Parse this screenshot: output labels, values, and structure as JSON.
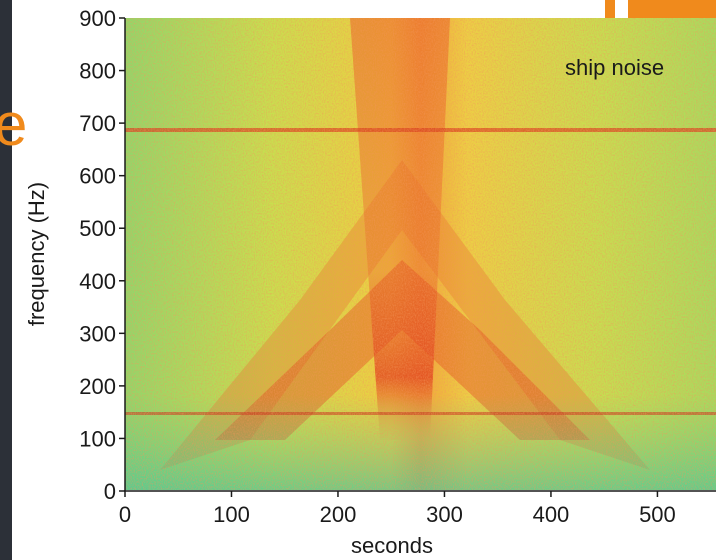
{
  "chart_data": {
    "type": "spectrogram",
    "annotation": "ship noise",
    "xlabel": "seconds",
    "ylabel": "frequency (Hz)",
    "xlim": [
      0,
      555
    ],
    "xticks": [
      0,
      100,
      200,
      300,
      400,
      500
    ],
    "ylim": [
      0,
      900
    ],
    "yticks": [
      0,
      100,
      200,
      300,
      400,
      500,
      600,
      700,
      800,
      900
    ]
  }
}
